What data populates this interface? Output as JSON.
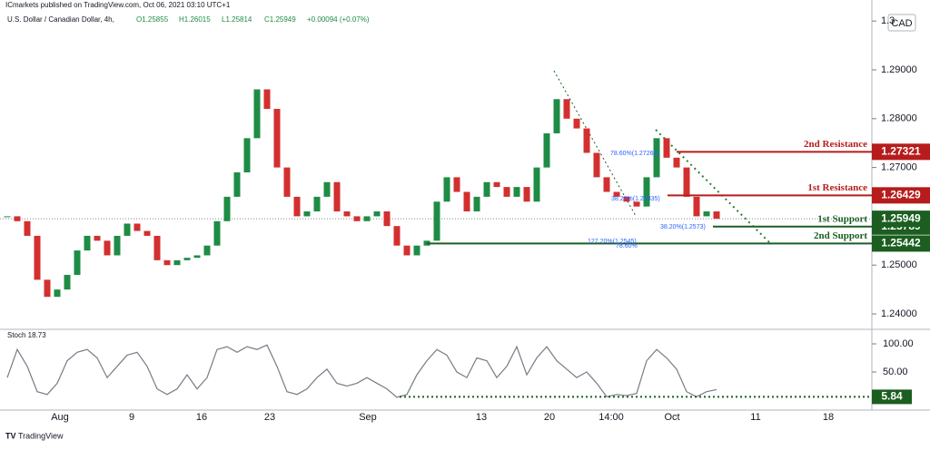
{
  "header": {
    "publisher": "ICmarkets published on TradingView.com, Oct 06, 2021 03:10 UTC+1",
    "logo": "TradingView"
  },
  "chart_data": [
    {
      "type": "candlestick",
      "title": "U.S. Dollar / Canadian Dollar, 4h,",
      "ohlc_legend": [
        "O1.25855",
        "H1.26015",
        "L1.25814",
        "C1.25949",
        "+0.00094 (+0.07%)"
      ],
      "currency": "CAD",
      "up_color": "#1e8c45",
      "down_color": "#d32f2f",
      "values": [
        1.26,
        1.259,
        1.256,
        1.247,
        1.2435,
        1.245,
        1.248,
        1.253,
        1.256,
        1.255,
        1.252,
        1.256,
        1.2585,
        1.257,
        1.256,
        1.251,
        1.25,
        1.251,
        1.2515,
        1.252,
        1.254,
        1.259,
        1.264,
        1.269,
        1.276,
        1.286,
        1.282,
        1.27,
        1.264,
        1.26,
        1.261,
        1.264,
        1.267,
        1.261,
        1.26,
        1.259,
        1.26,
        1.261,
        1.258,
        1.254,
        1.252,
        1.254,
        1.255,
        1.263,
        1.268,
        1.265,
        1.261,
        1.264,
        1.267,
        1.266,
        1.264,
        1.266,
        1.263,
        1.27,
        1.277,
        1.284,
        1.28,
        1.278,
        1.273,
        1.268,
        1.265,
        1.264,
        1.263,
        1.262,
        1.268,
        1.276,
        1.272,
        1.27,
        1.264,
        1.26,
        1.261,
        1.2595
      ],
      "x_labels": [
        "Aug",
        "9",
        "16",
        "23",
        "Sep",
        "13",
        "20",
        "14:00",
        "Oct",
        "11",
        "18"
      ],
      "ylim": [
        1.23703,
        1.30431
      ],
      "yticks": [
        {
          "value": 1.24,
          "label": "1.24000"
        },
        {
          "value": 1.25,
          "label": "1.25000"
        },
        {
          "value": 1.26,
          "label": "1.26000"
        },
        {
          "value": 1.27,
          "label": "1.27000"
        },
        {
          "value": 1.28,
          "label": "1.28000"
        },
        {
          "value": 1.29,
          "label": "1.29000"
        },
        {
          "value": 1.3,
          "label": "1.3"
        }
      ],
      "last_price": 1.25949,
      "levels": [
        {
          "label": "2nd Resistance",
          "value": 1.27321,
          "color": "#b71c1c"
        },
        {
          "label": "1st Resistance",
          "value": 1.26429,
          "color": "#b71c1c"
        },
        {
          "label": "1st Support",
          "value": 1.25789,
          "color": "#1b5e20"
        },
        {
          "label": "2nd Support",
          "value": 1.25442,
          "color": "#1b5e20"
        }
      ],
      "annotations": [
        "78.60%(1.27268)",
        "38.20%(1.26335)",
        "38.20%(1.2573)",
        "127.20%(1.2545)",
        "78.60%"
      ]
    },
    {
      "type": "line",
      "title": "Stoch 18.73",
      "color": "#787b86",
      "values": [
        40,
        90,
        60,
        15,
        10,
        30,
        70,
        85,
        90,
        75,
        40,
        60,
        80,
        85,
        60,
        20,
        10,
        20,
        45,
        20,
        40,
        90,
        95,
        85,
        95,
        90,
        98,
        60,
        15,
        10,
        20,
        40,
        55,
        30,
        25,
        30,
        40,
        30,
        20,
        5,
        10,
        45,
        70,
        90,
        80,
        50,
        40,
        75,
        70,
        40,
        60,
        95,
        45,
        75,
        95,
        70,
        55,
        40,
        50,
        30,
        6,
        10,
        8,
        12,
        70,
        90,
        75,
        55,
        15,
        6,
        15,
        18.73
      ],
      "ylim": [
        -17.7,
        122.6
      ],
      "yticks": [
        {
          "value": 100,
          "label": "100.00"
        },
        {
          "value": 50,
          "label": "50.00"
        }
      ],
      "level": 5.84
    }
  ]
}
